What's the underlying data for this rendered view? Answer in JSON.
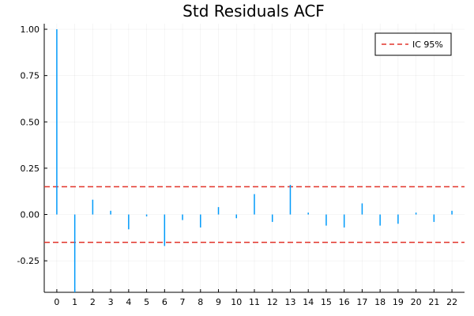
{
  "chart_data": {
    "type": "bar",
    "title": "Std Residuals ACF",
    "xlabel": "",
    "ylabel": "",
    "x": [
      0,
      1,
      2,
      3,
      4,
      5,
      6,
      7,
      8,
      9,
      10,
      11,
      12,
      13,
      14,
      15,
      16,
      17,
      18,
      19,
      20,
      21,
      22
    ],
    "series": [
      {
        "values": [
          1.0,
          -0.42,
          0.08,
          0.02,
          -0.08,
          -0.01,
          -0.17,
          -0.03,
          -0.07,
          0.04,
          -0.02,
          0.11,
          -0.04,
          0.16,
          0.01,
          -0.06,
          -0.07,
          0.06,
          -0.06,
          -0.05,
          0.01,
          -0.04,
          0.02
        ],
        "color": "#009AFA"
      }
    ],
    "reference_lines": [
      {
        "name": "IC 95%",
        "y": 0.15,
        "color": "#E2332A",
        "style": "dashed"
      },
      {
        "name": "IC 95%",
        "y": -0.15,
        "color": "#E2332A",
        "style": "dashed"
      }
    ],
    "xticks": [
      "0",
      "1",
      "2",
      "3",
      "4",
      "5",
      "6",
      "7",
      "8",
      "9",
      "10",
      "11",
      "12",
      "13",
      "14",
      "15",
      "16",
      "17",
      "18",
      "19",
      "20",
      "21",
      "22"
    ],
    "yticks": [
      -0.25,
      0.0,
      0.25,
      0.5,
      0.75,
      1.0
    ],
    "ytick_labels": [
      "-0.25",
      "0.00",
      "0.25",
      "0.50",
      "0.75",
      "1.00"
    ],
    "xlim": [
      -0.7,
      22.7
    ],
    "ylim": [
      -0.42,
      1.03
    ],
    "grid": true,
    "legend": {
      "position": "top-right",
      "entries": [
        "IC 95%"
      ]
    }
  }
}
